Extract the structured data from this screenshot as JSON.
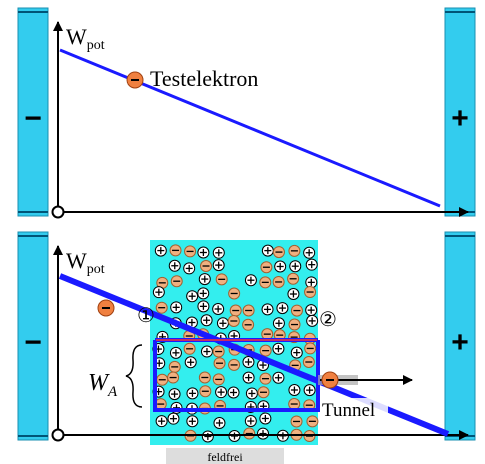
{
  "top_panel": {
    "left_plate": "−",
    "right_plate": "+",
    "y_label": {
      "main": "W",
      "sub": "pot"
    },
    "electron_label": "Testelektron"
  },
  "bottom_panel": {
    "left_plate": "−",
    "right_plate": "+",
    "y_label": {
      "main": "W",
      "sub": "pot"
    },
    "marker_1": "①",
    "marker_2": "②",
    "work_label": {
      "main": "W",
      "sub": "A"
    },
    "tunnel_label": "Tunnel",
    "region_label": "feldfrei"
  }
}
